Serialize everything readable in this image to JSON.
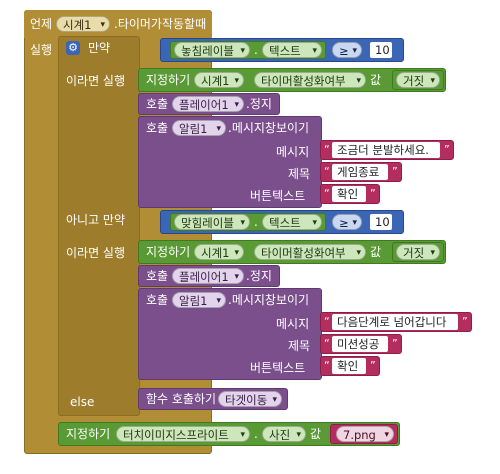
{
  "event": {
    "keyword": "언제",
    "component": "시계1",
    "name": ".타이머가작동할때",
    "do_label": "실행"
  },
  "if_block": {
    "keyword": "만약",
    "then_label": "이라면 실행",
    "elseif_label": "아니고 만약",
    "then2_label": "이라면 실행",
    "else_label": "else"
  },
  "cond1": {
    "component": "놓침레이블",
    "dot": ".",
    "prop": "텍스트",
    "op": "≥",
    "value": "10"
  },
  "cond2": {
    "component": "맞힘레이블",
    "dot": ".",
    "prop": "텍스트",
    "op": "≥",
    "value": "10"
  },
  "branch1": {
    "set": {
      "keyword": "지정하기",
      "component": "시계1",
      "prop": "타이머활성화여부",
      "to": "값",
      "value": "거짓"
    },
    "stop": {
      "keyword": "호출",
      "component": "플레이어1",
      "method": ".정지"
    },
    "alert": {
      "keyword": "호출",
      "component": "알림1",
      "method": ".메시지창보이기",
      "message_label": "메시지",
      "message": "조금더 분발하세요.",
      "title_label": "제목",
      "title": "게임종료",
      "button_label": "버튼텍스트",
      "button": "확인"
    }
  },
  "branch2": {
    "set": {
      "keyword": "지정하기",
      "component": "시계1",
      "prop": "타이머활성화여부",
      "to": "값",
      "value": "거짓"
    },
    "stop": {
      "keyword": "호출",
      "component": "플레이어1",
      "method": ".정지"
    },
    "alert": {
      "keyword": "호출",
      "component": "알림1",
      "method": ".메시지창보이기",
      "message_label": "메시지",
      "message": "다음단계로 넘어갑니다",
      "title_label": "제목",
      "title": "미션성공",
      "button_label": "버튼텍스트",
      "button": "확인"
    }
  },
  "else_call": {
    "keyword": "함수 호출하기",
    "procedure": "타겟이동"
  },
  "final_set": {
    "keyword": "지정하기",
    "component": "터치이미지스프라이트",
    "dot": ".",
    "prop": "사진",
    "to": "값",
    "value": "7.png"
  },
  "colors": {
    "event": "#b18e35",
    "component": "#5a9a35",
    "procedure": "#7a4f8c",
    "text": "#b32d5e",
    "math": "#3b66b5"
  }
}
